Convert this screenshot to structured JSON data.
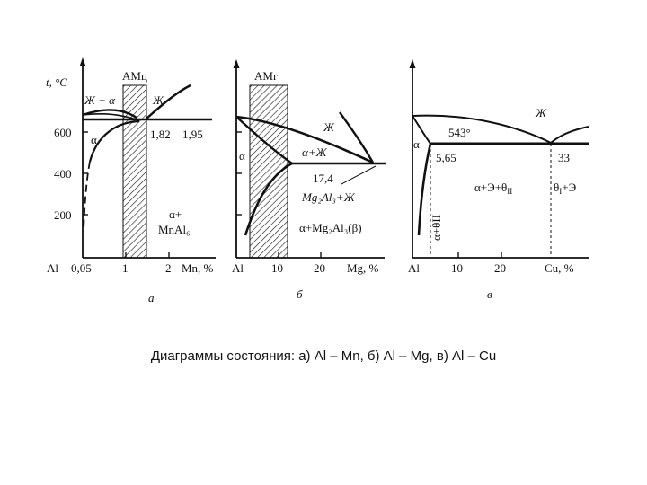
{
  "caption": "Диаграммы состояния: а) Al – Mn, б) Al – Mg, в) Al – Cu",
  "panel_a": {
    "letter": "а",
    "y_axis_label": "t, °C",
    "y_ticks": [
      "600",
      "400",
      "200"
    ],
    "x_ticks": [
      "Al",
      "0,05",
      "1",
      "2",
      "Mn, %"
    ],
    "zone_label": "АМц",
    "labels": {
      "liquid_alpha": "Ж + α",
      "liquid": "Ж",
      "alpha": "α",
      "v182": "1,82",
      "v195": "1,95",
      "alpha_plus": "α+",
      "mnal6": "MnAl₆"
    }
  },
  "panel_b": {
    "letter": "б",
    "x_ticks": [
      "Al",
      "10",
      "20",
      "Mg, %"
    ],
    "zone_label": "АМг",
    "labels": {
      "liquid": "Ж",
      "alpha": "α",
      "alpha_liquid": "α+Ж",
      "v174": "17,4",
      "mg2al3_liquid": "Mg₂Al₃+Ж",
      "alpha_mg2al3": "α+Mg₂Al₃(β)"
    }
  },
  "panel_c": {
    "letter": "в",
    "x_ticks": [
      "Al",
      "10",
      "20",
      "Cu, %"
    ],
    "labels": {
      "liquid": "Ж",
      "temp543": "543°",
      "alpha": "α",
      "v565": "5,65",
      "v33": "33",
      "alpha_e_theta": "α+Э+θ",
      "sub_ii": "II",
      "theta_e": "θ",
      "sub_i": "I",
      "plus_e": "+Э",
      "alpha_theta_ii": "α+θII"
    }
  }
}
